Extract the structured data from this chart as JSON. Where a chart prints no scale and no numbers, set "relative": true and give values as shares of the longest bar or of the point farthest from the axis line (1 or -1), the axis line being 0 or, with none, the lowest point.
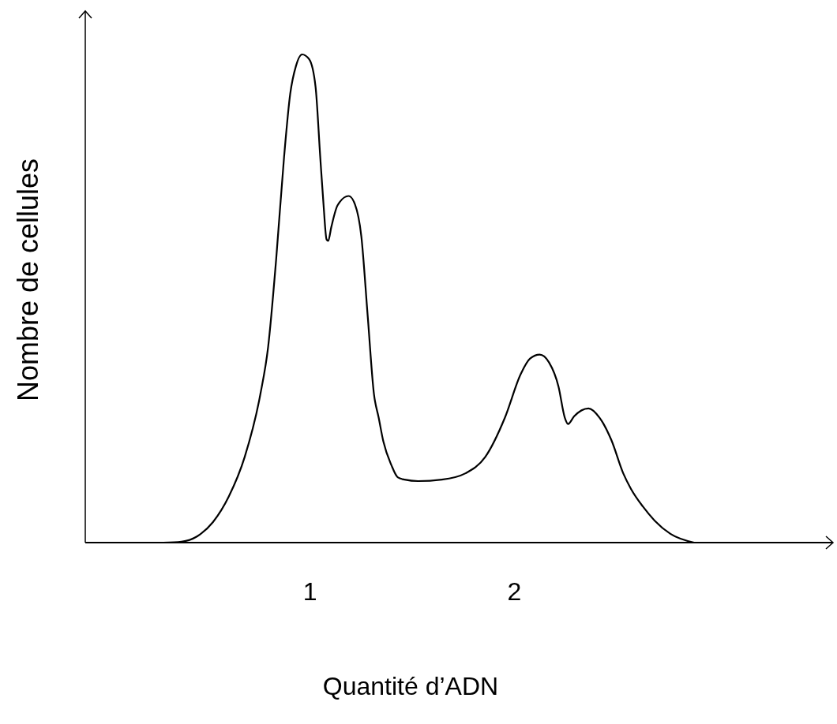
{
  "chart_data": {
    "type": "line",
    "xlabel": "Quantité d’ADN",
    "ylabel": "Nombre de cellules",
    "relative": true,
    "xlim": [
      -0.1,
      3.56
    ],
    "xticks": [
      1,
      2
    ],
    "grid": false,
    "marker": "none",
    "line_style": "solid",
    "series": [
      {
        "color": "#000000",
        "x": [
          0.282,
          0.371,
          0.448,
          0.525,
          0.602,
          0.68,
          0.757,
          0.795,
          0.834,
          0.873,
          0.903,
          0.931,
          0.961,
          0.996,
          1.027,
          1.05,
          1.066,
          1.081,
          1.089,
          1.104,
          1.135,
          1.189,
          1.22,
          1.251,
          1.282,
          1.313,
          1.336,
          1.359,
          1.398,
          1.429,
          1.463,
          1.529,
          1.645,
          1.761,
          1.857,
          1.954,
          2.031,
          2.077,
          2.124,
          2.17,
          2.216,
          2.247,
          2.263,
          2.293,
          2.363,
          2.417,
          2.475,
          2.533,
          2.571,
          2.629,
          2.687,
          2.764,
          2.88
        ],
        "values": [
          0,
          0.002,
          0.013,
          0.042,
          0.094,
          0.175,
          0.304,
          0.401,
          0.579,
          0.79,
          0.919,
          0.976,
          1.0,
          0.99,
          0.934,
          0.79,
          0.693,
          0.621,
          0.618,
          0.646,
          0.691,
          0.71,
          0.693,
          0.628,
          0.466,
          0.304,
          0.256,
          0.207,
          0.159,
          0.134,
          0.129,
          0.126,
          0.129,
          0.142,
          0.175,
          0.256,
          0.345,
          0.377,
          0.385,
          0.369,
          0.32,
          0.256,
          0.243,
          0.259,
          0.275,
          0.256,
          0.21,
          0.142,
          0.11,
          0.074,
          0.045,
          0.018,
          0
        ]
      }
    ]
  }
}
